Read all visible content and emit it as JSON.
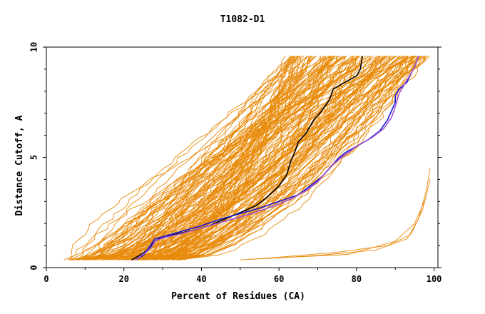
{
  "chart_data": {
    "type": "line",
    "title": "T1082-D1",
    "xlabel": "Percent of Residues (CA)",
    "ylabel": "Distance Cutoff, A",
    "xlim": [
      0,
      101
    ],
    "ylim": [
      0,
      10
    ],
    "x_ticks": [
      "0",
      "20",
      "40",
      "60",
      "80",
      "100"
    ],
    "y_ticks": [
      "0",
      "5",
      "10"
    ],
    "grid": false,
    "legend": "none",
    "colors": {
      "background_models": "#e88a0a",
      "highlight_black": "#000000",
      "highlight_blue": "#1a1ad0",
      "highlight_purple": "#a050d0"
    },
    "series": [
      {
        "role": "highlight",
        "color": "#000000",
        "points": [
          [
            22,
            0.35
          ],
          [
            24,
            0.55
          ],
          [
            26,
            0.8
          ],
          [
            27,
            1.0
          ],
          [
            28,
            1.2
          ],
          [
            29,
            1.3
          ],
          [
            33,
            1.5
          ],
          [
            38,
            1.7
          ],
          [
            42,
            1.9
          ],
          [
            46,
            2.2
          ],
          [
            50,
            2.5
          ],
          [
            54,
            2.8
          ],
          [
            57,
            3.2
          ],
          [
            60,
            3.7
          ],
          [
            62,
            4.2
          ],
          [
            63,
            4.8
          ],
          [
            64,
            5.2
          ],
          [
            65,
            5.7
          ],
          [
            67,
            6.1
          ],
          [
            69,
            6.7
          ],
          [
            71,
            7.1
          ],
          [
            73,
            7.6
          ],
          [
            74,
            8.1
          ],
          [
            77,
            8.4
          ],
          [
            80,
            8.7
          ],
          [
            81,
            9.0
          ],
          [
            81.5,
            9.6
          ]
        ]
      },
      {
        "role": "highlight",
        "color": "#1a1ad0",
        "points": [
          [
            23,
            0.35
          ],
          [
            25,
            0.55
          ],
          [
            26,
            0.8
          ],
          [
            27,
            1.05
          ],
          [
            28,
            1.3
          ],
          [
            31,
            1.45
          ],
          [
            35,
            1.65
          ],
          [
            40,
            1.9
          ],
          [
            45,
            2.2
          ],
          [
            50,
            2.45
          ],
          [
            55,
            2.7
          ],
          [
            60,
            3.0
          ],
          [
            65,
            3.3
          ],
          [
            68,
            3.7
          ],
          [
            71,
            4.1
          ],
          [
            73,
            4.5
          ],
          [
            75,
            4.9
          ],
          [
            77,
            5.2
          ],
          [
            80,
            5.5
          ],
          [
            83,
            5.8
          ],
          [
            86,
            6.2
          ],
          [
            88,
            6.7
          ],
          [
            89,
            7.1
          ],
          [
            90,
            7.5
          ],
          [
            90,
            7.8
          ],
          [
            91,
            8.1
          ],
          [
            93,
            8.4
          ],
          [
            94,
            8.8
          ],
          [
            95,
            9.1
          ],
          [
            96,
            9.6
          ]
        ]
      },
      {
        "role": "highlight",
        "color": "#a050d0",
        "points": [
          [
            23,
            0.35
          ],
          [
            25,
            0.6
          ],
          [
            27,
            0.9
          ],
          [
            28,
            1.2
          ],
          [
            30,
            1.35
          ],
          [
            35,
            1.55
          ],
          [
            40,
            1.8
          ],
          [
            46,
            2.1
          ],
          [
            52,
            2.4
          ],
          [
            58,
            2.75
          ],
          [
            63,
            3.1
          ],
          [
            67,
            3.5
          ],
          [
            70,
            3.9
          ],
          [
            72,
            4.3
          ],
          [
            74,
            4.7
          ],
          [
            77,
            5.1
          ],
          [
            80,
            5.5
          ],
          [
            84,
            5.9
          ],
          [
            87,
            6.3
          ],
          [
            89,
            6.8
          ],
          [
            90,
            7.3
          ],
          [
            91,
            7.9
          ],
          [
            93,
            8.5
          ],
          [
            95,
            9.1
          ],
          [
            96,
            9.6
          ]
        ]
      }
    ]
  }
}
